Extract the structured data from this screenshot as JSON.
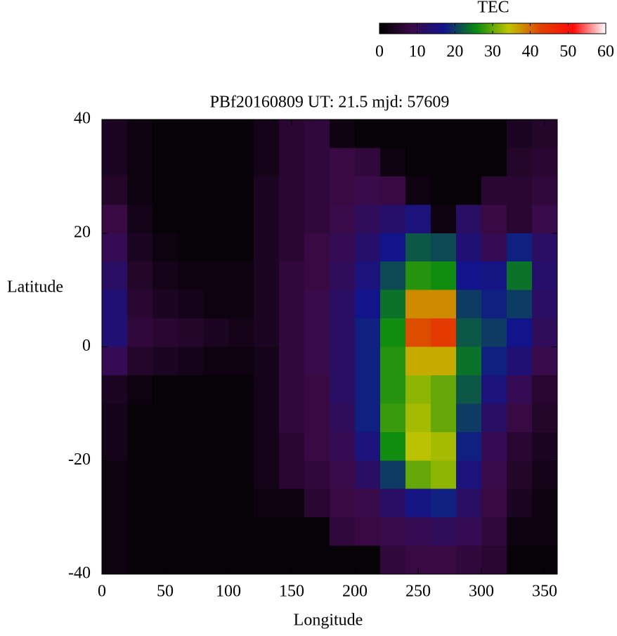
{
  "chart_data": {
    "type": "heatmap",
    "title": "PBf20160809  UT: 21.5  mjd: 57609",
    "x_label": "Longitude",
    "y_label": "Latitude",
    "x": [
      10,
      30,
      50,
      70,
      90,
      110,
      130,
      150,
      170,
      190,
      210,
      230,
      250,
      270,
      290,
      310,
      330,
      350
    ],
    "y": [
      37.5,
      32.5,
      27.5,
      22.5,
      17.5,
      12.5,
      7.5,
      2.5,
      -2.5,
      -7.5,
      -12.5,
      -17.5,
      -22.5,
      -27.5,
      -32.5,
      -37.5
    ],
    "values": [
      [
        4,
        2,
        1,
        1,
        1,
        1,
        3,
        6,
        7,
        2,
        1,
        1,
        1,
        1,
        1,
        1,
        4,
        5
      ],
      [
        4,
        2,
        1,
        1,
        1,
        1,
        3,
        6,
        7,
        8,
        7,
        2,
        1,
        1,
        1,
        1,
        5,
        6
      ],
      [
        5,
        2,
        1,
        1,
        1,
        1,
        4,
        6,
        7,
        8,
        9,
        8,
        2,
        1,
        1,
        6,
        6,
        7
      ],
      [
        8,
        3,
        1,
        1,
        1,
        1,
        4,
        6,
        7,
        9,
        11,
        13,
        15,
        2,
        12,
        8,
        6,
        9
      ],
      [
        10,
        4,
        2,
        1,
        1,
        1,
        4,
        6,
        8,
        10,
        13,
        17,
        22,
        21,
        14,
        10,
        18,
        12
      ],
      [
        12,
        5,
        3,
        2,
        2,
        2,
        4,
        7,
        8,
        11,
        15,
        21,
        27,
        26,
        17,
        16,
        24,
        13
      ],
      [
        14,
        6,
        4,
        3,
        2,
        2,
        4,
        7,
        9,
        12,
        17,
        24,
        38,
        38,
        20,
        18,
        20,
        12
      ],
      [
        14,
        7,
        6,
        5,
        4,
        3,
        4,
        7,
        9,
        12,
        18,
        26,
        42,
        44,
        22,
        20,
        17,
        11
      ],
      [
        10,
        5,
        4,
        3,
        2,
        2,
        3,
        7,
        9,
        12,
        18,
        27,
        36,
        36,
        24,
        18,
        14,
        9
      ],
      [
        4,
        2,
        1,
        1,
        1,
        1,
        3,
        7,
        8,
        12,
        18,
        27,
        32,
        30,
        22,
        15,
        10,
        6
      ],
      [
        3,
        1,
        1,
        1,
        1,
        1,
        3,
        7,
        8,
        11,
        18,
        28,
        33,
        30,
        20,
        12,
        8,
        5
      ],
      [
        3,
        1,
        1,
        1,
        1,
        1,
        3,
        6,
        8,
        10,
        15,
        26,
        34,
        33,
        18,
        10,
        6,
        4
      ],
      [
        2,
        1,
        1,
        1,
        1,
        1,
        3,
        6,
        7,
        9,
        12,
        20,
        30,
        32,
        15,
        9,
        5,
        3
      ],
      [
        2,
        1,
        1,
        1,
        1,
        1,
        2,
        2,
        6,
        8,
        9,
        12,
        16,
        18,
        12,
        8,
        4,
        2
      ],
      [
        2,
        1,
        1,
        1,
        1,
        1,
        1,
        1,
        1,
        7,
        8,
        9,
        10,
        11,
        10,
        7,
        2,
        2
      ],
      [
        2,
        1,
        1,
        1,
        1,
        1,
        1,
        1,
        1,
        1,
        1,
        7,
        8,
        8,
        7,
        6,
        1,
        1
      ]
    ],
    "xlim": [
      0,
      360
    ],
    "ylim": [
      -40,
      40
    ],
    "xticks": [
      0,
      50,
      100,
      150,
      200,
      250,
      300,
      350
    ],
    "yticks": [
      -40,
      -20,
      0,
      20,
      40
    ],
    "colorbar": {
      "title": "TEC",
      "lim": [
        0,
        60
      ],
      "ticks": [
        0,
        10,
        20,
        30,
        40,
        50,
        60
      ],
      "colors": [
        "#000000",
        "#3c0a48",
        "#10148c",
        "#0a8a10",
        "#c0c400",
        "#e04000",
        "#ff0a0a",
        "#ffffff"
      ]
    }
  }
}
